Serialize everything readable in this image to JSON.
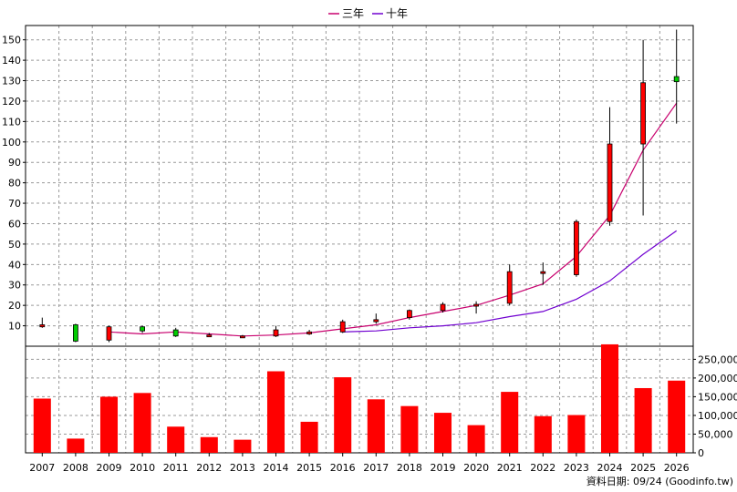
{
  "chart_data": {
    "type": "candlestick",
    "legend": [
      {
        "label": "三年",
        "color": "#c8006e"
      },
      {
        "label": "十年",
        "color": "#7000d0"
      }
    ],
    "categories": [
      "2007",
      "2008",
      "2009",
      "2010",
      "2011",
      "2012",
      "2013",
      "2014",
      "2015",
      "2016",
      "2017",
      "2018",
      "2019",
      "2020",
      "2021",
      "2022",
      "2023",
      "2024",
      "2025",
      "2026"
    ],
    "price_axis": {
      "ylim": [
        0,
        157
      ],
      "ticks": [
        10,
        20,
        30,
        40,
        50,
        60,
        70,
        80,
        90,
        100,
        110,
        120,
        130,
        140,
        150
      ]
    },
    "volume_axis": {
      "ylim": [
        0,
        285000
      ],
      "ticks": [
        0,
        50000,
        100000,
        150000,
        200000,
        250000
      ],
      "tick_labels": [
        "0",
        "50,000",
        "100,000",
        "150,000",
        "200,000",
        "250,000"
      ]
    },
    "candles": [
      {
        "open": 9.5,
        "close": 10.5,
        "high": 14,
        "low": 9,
        "color": "red"
      },
      {
        "open": 10.5,
        "close": 2.5,
        "high": 11,
        "low": 2,
        "color": "green"
      },
      {
        "open": 3,
        "close": 9.5,
        "high": 10,
        "low": 2,
        "color": "red"
      },
      {
        "open": 9.5,
        "close": 7.5,
        "high": 10,
        "low": 6.5,
        "color": "green"
      },
      {
        "open": 8,
        "close": 5,
        "high": 9,
        "low": 4.5,
        "color": "green"
      },
      {
        "open": 5.5,
        "close": 5.5,
        "high": 6.5,
        "low": 4.5,
        "color": "red"
      },
      {
        "open": 5,
        "close": 5,
        "high": 5.5,
        "low": 4.5,
        "color": "red"
      },
      {
        "open": 5,
        "close": 8,
        "high": 10,
        "low": 4.5,
        "color": "red"
      },
      {
        "open": 6,
        "close": 7,
        "high": 8,
        "low": 5.5,
        "color": "red"
      },
      {
        "open": 7,
        "close": 12,
        "high": 13,
        "low": 6.5,
        "color": "red"
      },
      {
        "open": 12,
        "close": 13,
        "high": 16,
        "low": 11,
        "color": "red"
      },
      {
        "open": 14,
        "close": 17.5,
        "high": 18,
        "low": 13,
        "color": "red"
      },
      {
        "open": 17.5,
        "close": 20.5,
        "high": 21.5,
        "low": 16.5,
        "color": "red"
      },
      {
        "open": 20,
        "close": 20.5,
        "high": 22,
        "low": 16,
        "color": "red"
      },
      {
        "open": 21,
        "close": 36.5,
        "high": 40,
        "low": 20,
        "color": "red"
      },
      {
        "open": 36,
        "close": 36.5,
        "high": 41,
        "low": 30,
        "color": "red"
      },
      {
        "open": 35,
        "close": 61,
        "high": 62,
        "low": 34,
        "color": "red"
      },
      {
        "open": 61,
        "close": 99,
        "high": 117,
        "low": 59,
        "color": "red"
      },
      {
        "open": 99,
        "close": 129,
        "high": 150,
        "low": 64,
        "color": "red"
      },
      {
        "open": 132,
        "close": 129.5,
        "high": 155,
        "low": 109,
        "color": "green"
      }
    ],
    "ma3": [
      null,
      null,
      7,
      6,
      7,
      6,
      5,
      5.5,
      6.5,
      8.5,
      10.5,
      14,
      17,
      20,
      25,
      30.5,
      44,
      64,
      96,
      119
    ],
    "ma10": [
      null,
      null,
      null,
      null,
      null,
      null,
      null,
      null,
      null,
      7,
      7.5,
      9,
      10,
      11.5,
      14.5,
      17,
      23,
      32,
      45,
      56.5
    ],
    "volume": [
      145000,
      38000,
      150000,
      160000,
      70000,
      42000,
      35000,
      218000,
      83000,
      202000,
      143000,
      125000,
      107000,
      74000,
      163000,
      98000,
      101000,
      290000,
      173000,
      193000
    ],
    "grid": true,
    "source_note": "資料日期: 09/24  (Goodinfo.tw)"
  }
}
